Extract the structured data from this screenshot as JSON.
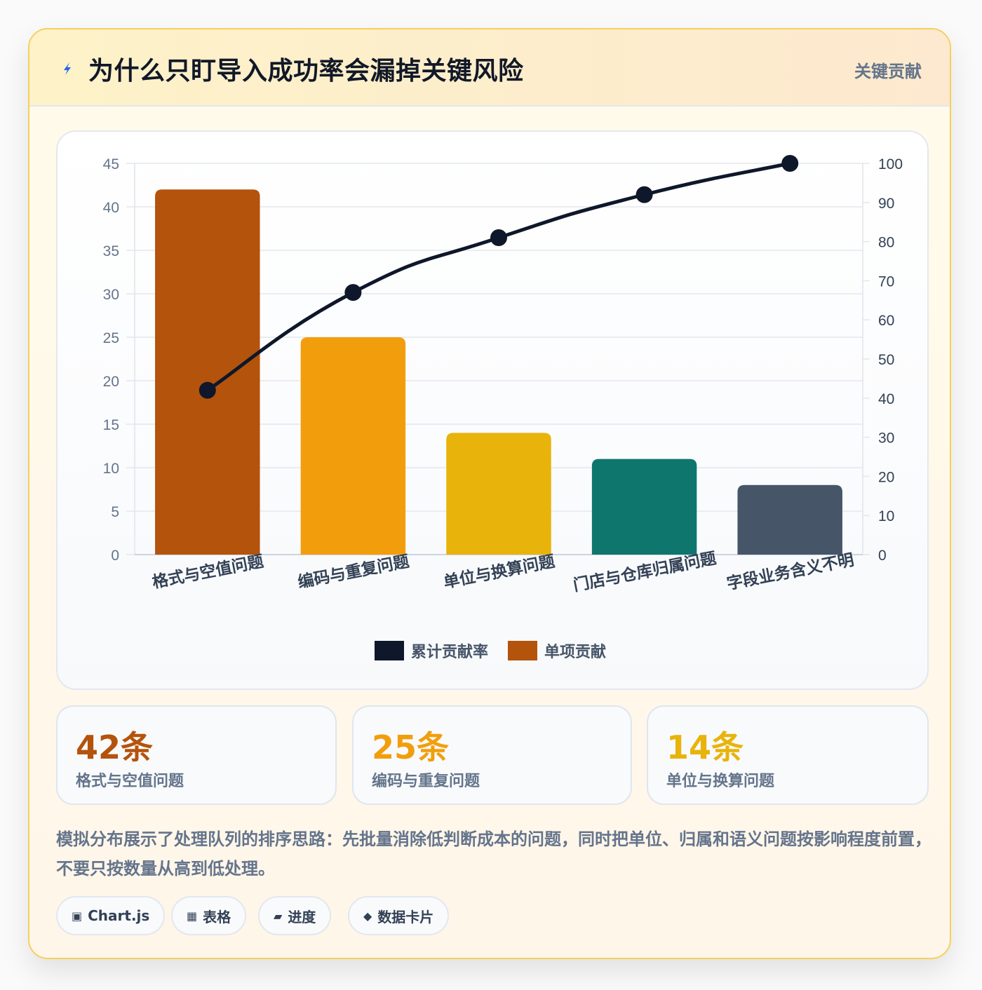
{
  "header": {
    "icon": "lightning-icon",
    "title": "为什么只盯导入成功率会漏掉关键风险",
    "badge": "关键贡献"
  },
  "chart_data": {
    "type": "bar",
    "categories": [
      "格式与空值问题",
      "编码与重复问题",
      "单位与换算问题",
      "门店与仓库归属问题",
      "字段业务含义不明"
    ],
    "series": [
      {
        "name": "单项贡献",
        "type": "bar",
        "axis": "left",
        "values": [
          42,
          25,
          14,
          11,
          8
        ],
        "colors": [
          "#b4530c",
          "#f29e0c",
          "#e8b30b",
          "#0f766e",
          "#475569"
        ]
      },
      {
        "name": "累计贡献率",
        "type": "line",
        "axis": "right",
        "values": [
          42,
          67,
          81,
          92,
          100
        ],
        "color": "#0f172a"
      }
    ],
    "y_left": {
      "min": 0,
      "max": 45,
      "ticks": [
        0,
        5,
        10,
        15,
        20,
        25,
        30,
        35,
        40,
        45
      ]
    },
    "y_right": {
      "min": 0,
      "max": 100,
      "ticks": [
        0,
        10,
        20,
        30,
        40,
        50,
        60,
        70,
        80,
        90,
        100
      ]
    },
    "legend": [
      {
        "label": "累计贡献率",
        "color": "#0f172a"
      },
      {
        "label": "单项贡献",
        "color": "#b4530c"
      }
    ],
    "legend_position": "bottom",
    "grid": true
  },
  "stats": [
    {
      "value": "42条",
      "label": "格式与空值问题",
      "color": "#b4530c"
    },
    {
      "value": "25条",
      "label": "编码与重复问题",
      "color": "#f29e0c"
    },
    {
      "value": "14条",
      "label": "单位与换算问题",
      "color": "#e8b30b"
    }
  ],
  "note": "模拟分布展示了处理队列的排序思路：先批量消除低判断成本的问题，同时把单位、归属和语义问题按影响程度前置，不要只按数量从高到低处理。",
  "tags": [
    {
      "icon": "▣",
      "icon_name": "chart-icon",
      "label": "Chart.js"
    },
    {
      "icon": "▦",
      "icon_name": "table-icon",
      "label": "表格"
    },
    {
      "icon": "▰",
      "icon_name": "progress-icon",
      "label": "进度"
    },
    {
      "icon": "◆",
      "icon_name": "data-card-icon",
      "label": "数据卡片"
    }
  ]
}
